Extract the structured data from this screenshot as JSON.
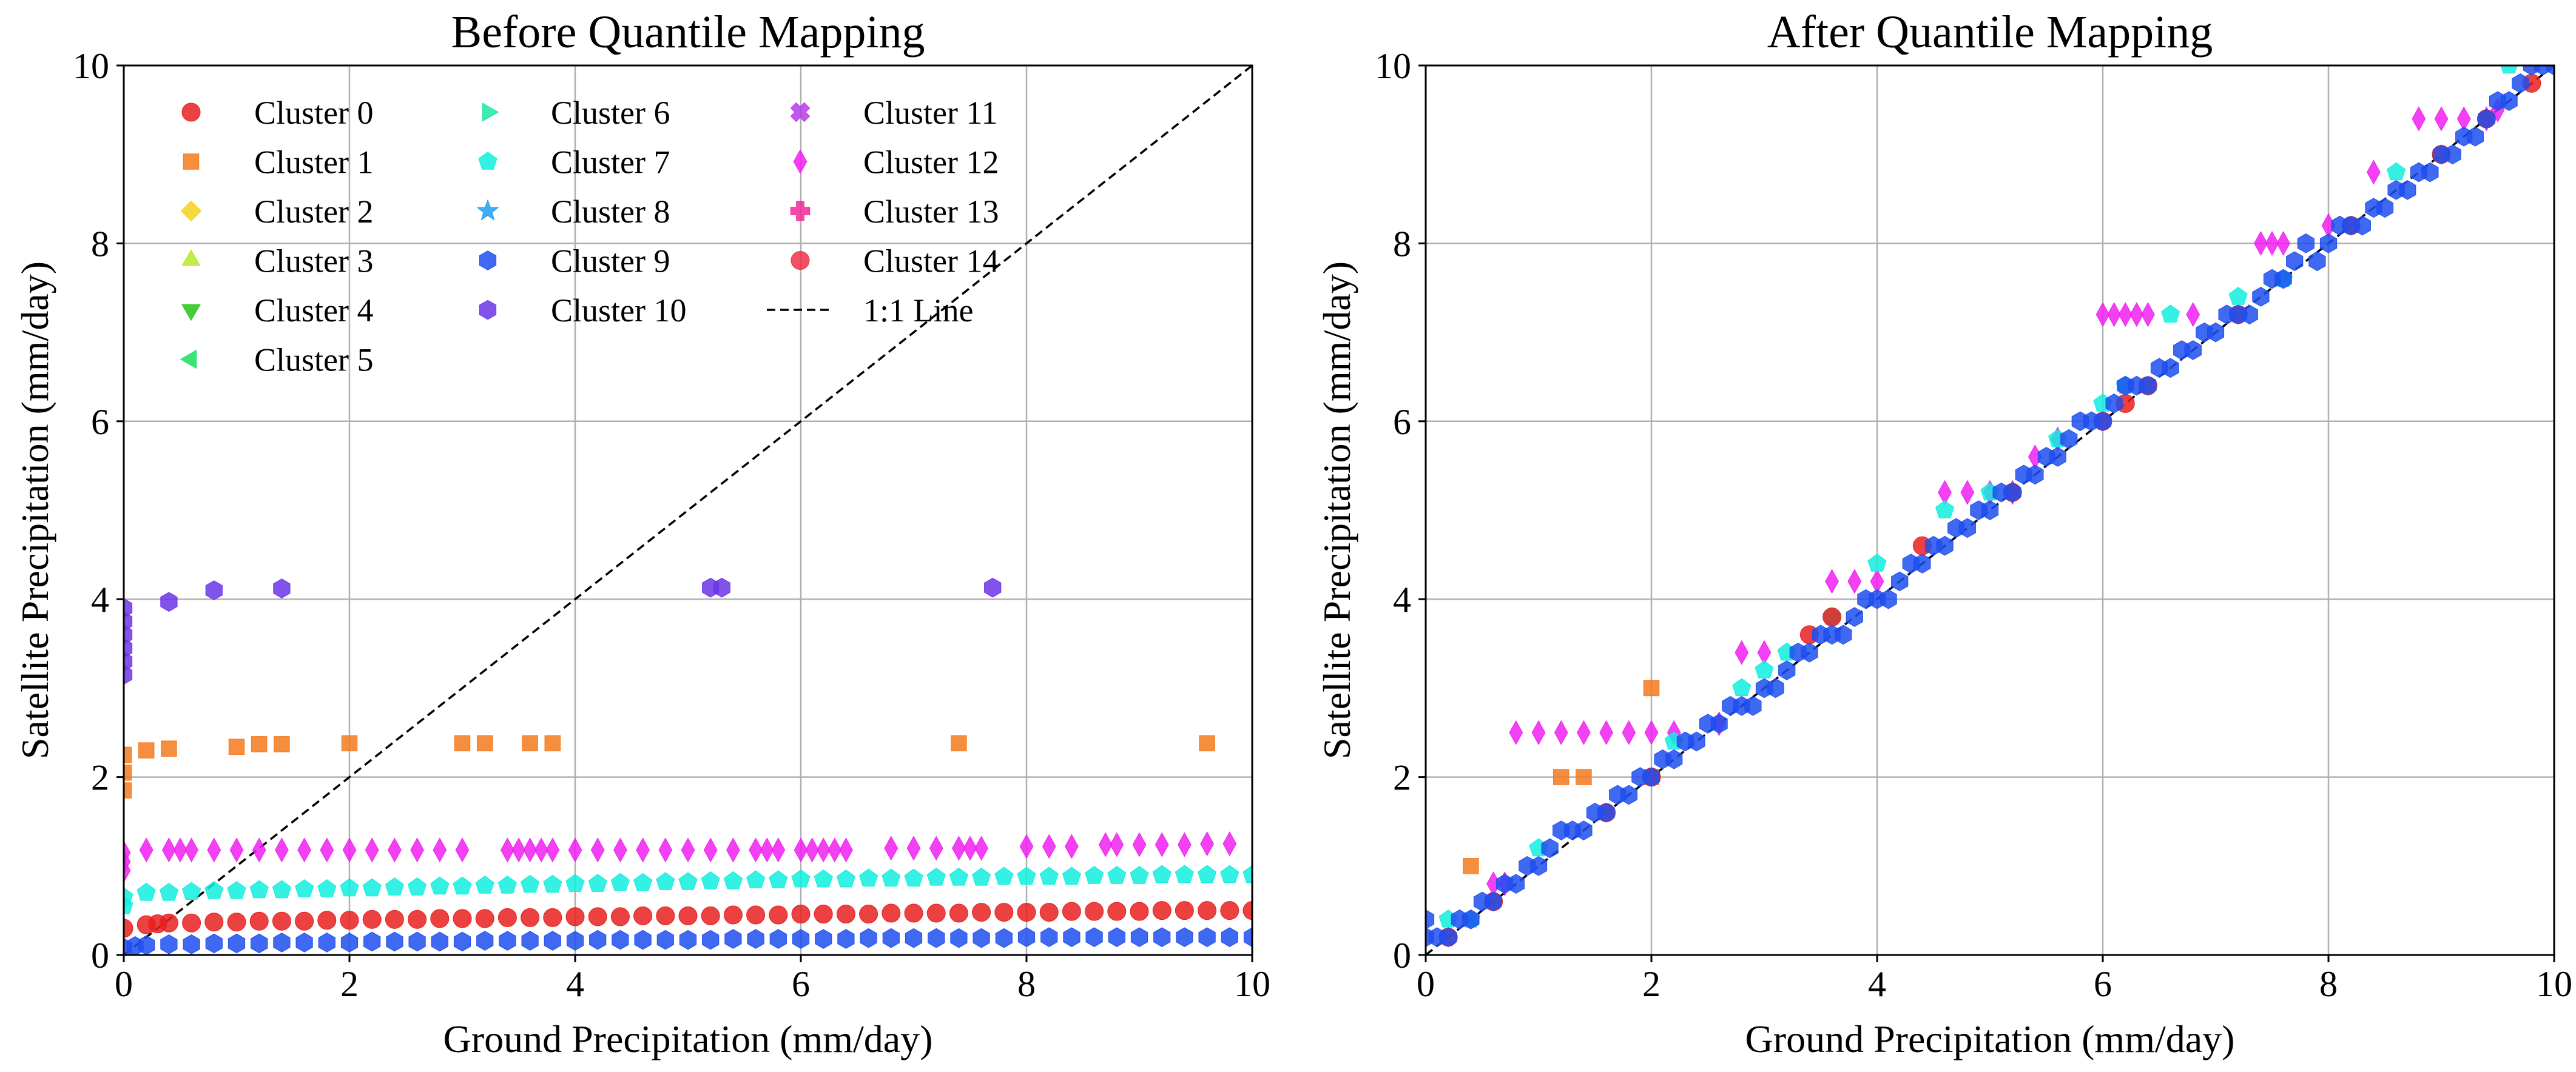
{
  "chart_data": [
    {
      "type": "scatter",
      "title": "Before Quantile Mapping",
      "xlabel": "Ground Precipitation (mm/day)",
      "ylabel": "Satellite Precipitation (mm/day)",
      "xlim": [
        0,
        10
      ],
      "ylim": [
        0,
        10
      ],
      "xticks": [
        0,
        2,
        4,
        6,
        8,
        10
      ],
      "yticks": [
        0,
        2,
        4,
        6,
        8,
        10
      ],
      "grid": true,
      "legend_position": "top-left, three columns",
      "reference_line": {
        "name": "1:1 Line",
        "x": [
          0,
          10
        ],
        "y": [
          0,
          10
        ],
        "style": "dashed",
        "color": "#000000"
      },
      "legend": [
        {
          "name": "Cluster 0",
          "marker": "circle",
          "color": "#e8201e"
        },
        {
          "name": "Cluster 1",
          "marker": "square",
          "color": "#f57a1f"
        },
        {
          "name": "Cluster 2",
          "marker": "diamond",
          "color": "#f5d21c"
        },
        {
          "name": "Cluster 3",
          "marker": "triangle-up",
          "color": "#b5ea2a"
        },
        {
          "name": "Cluster 4",
          "marker": "triangle-down",
          "color": "#27c418"
        },
        {
          "name": "Cluster 5",
          "marker": "triangle-left",
          "color": "#19e05a"
        },
        {
          "name": "Cluster 6",
          "marker": "triangle-right",
          "color": "#1be8a2"
        },
        {
          "name": "Cluster 7",
          "marker": "pentagon",
          "color": "#10eedf"
        },
        {
          "name": "Cluster 8",
          "marker": "star",
          "color": "#1e9ff0"
        },
        {
          "name": "Cluster 9",
          "marker": "hexagon",
          "color": "#1e4ff0"
        },
        {
          "name": "Cluster 10",
          "marker": "hexagon",
          "color": "#6b35e8"
        },
        {
          "name": "Cluster 11",
          "marker": "x",
          "color": "#b63ae8"
        },
        {
          "name": "Cluster 12",
          "marker": "thin-diamond",
          "color": "#f020f0"
        },
        {
          "name": "Cluster 13",
          "marker": "plus",
          "color": "#f02a9a"
        },
        {
          "name": "Cluster 14",
          "marker": "circle",
          "color": "#f0324a"
        },
        {
          "name": "1:1 Line",
          "marker": "dashed-line",
          "color": "#000000"
        }
      ],
      "series": [
        {
          "name": "Cluster 1",
          "marker": "square",
          "color": "#f57a1f",
          "x": [
            0,
            0,
            0,
            0.2,
            0.4,
            1.0,
            1.2,
            1.4,
            2.0,
            3.0,
            3.2,
            3.6,
            3.8,
            7.4,
            9.6
          ],
          "y": [
            1.85,
            2.05,
            2.25,
            2.3,
            2.32,
            2.34,
            2.37,
            2.37,
            2.38,
            2.38,
            2.38,
            2.38,
            2.38,
            2.38,
            2.38
          ]
        },
        {
          "name": "Cluster 10",
          "marker": "hexagon",
          "color": "#6b35e8",
          "x": [
            0,
            0,
            0,
            0,
            0,
            0,
            0.4,
            0.8,
            1.4,
            5.2,
            5.3,
            7.7
          ],
          "y": [
            3.15,
            3.3,
            3.45,
            3.6,
            3.75,
            3.9,
            3.97,
            4.1,
            4.12,
            4.13,
            4.13,
            4.13
          ]
        },
        {
          "name": "Cluster 12",
          "marker": "thin-diamond",
          "color": "#f020f0",
          "x": [
            0,
            0,
            0,
            0.2,
            0.4,
            0.5,
            0.6,
            0.8,
            1.0,
            1.2,
            1.4,
            1.6,
            1.8,
            2.0,
            2.2,
            2.4,
            2.6,
            2.8,
            3.0,
            3.4,
            3.5,
            3.6,
            3.7,
            3.8,
            4.0,
            4.2,
            4.4,
            4.6,
            4.8,
            5.0,
            5.2,
            5.4,
            5.6,
            5.7,
            5.8,
            6.0,
            6.1,
            6.2,
            6.3,
            6.4,
            6.8,
            7.0,
            7.2,
            7.4,
            7.5,
            7.6,
            8.0,
            8.2,
            8.4,
            8.7,
            8.8,
            9.0,
            9.2,
            9.4,
            9.6,
            9.8
          ],
          "y": [
            0.95,
            1.05,
            1.15,
            1.18,
            1.18,
            1.18,
            1.18,
            1.18,
            1.18,
            1.18,
            1.18,
            1.18,
            1.18,
            1.18,
            1.18,
            1.18,
            1.18,
            1.18,
            1.18,
            1.18,
            1.18,
            1.18,
            1.18,
            1.18,
            1.18,
            1.18,
            1.18,
            1.18,
            1.18,
            1.18,
            1.18,
            1.18,
            1.18,
            1.18,
            1.18,
            1.18,
            1.18,
            1.18,
            1.18,
            1.18,
            1.2,
            1.2,
            1.2,
            1.2,
            1.2,
            1.2,
            1.22,
            1.22,
            1.22,
            1.24,
            1.24,
            1.24,
            1.24,
            1.24,
            1.25,
            1.25
          ]
        },
        {
          "name": "Cluster 7",
          "marker": "pentagon",
          "color": "#10eedf",
          "x": [
            0,
            0,
            0.2,
            0.4,
            0.6,
            0.8,
            1.0,
            1.2,
            1.4,
            1.6,
            1.8,
            2.0,
            2.2,
            2.4,
            2.6,
            2.8,
            3.0,
            3.2,
            3.4,
            3.6,
            3.8,
            4.0,
            4.2,
            4.4,
            4.6,
            4.8,
            5.0,
            5.2,
            5.4,
            5.6,
            5.8,
            6.0,
            6.2,
            6.4,
            6.6,
            6.8,
            7.0,
            7.2,
            7.4,
            7.6,
            7.8,
            8.0,
            8.2,
            8.4,
            8.6,
            8.8,
            9.0,
            9.2,
            9.4,
            9.6,
            9.8,
            10.0
          ],
          "y": [
            0.55,
            0.65,
            0.7,
            0.7,
            0.71,
            0.72,
            0.72,
            0.73,
            0.73,
            0.74,
            0.74,
            0.75,
            0.75,
            0.76,
            0.76,
            0.77,
            0.77,
            0.78,
            0.78,
            0.79,
            0.79,
            0.8,
            0.8,
            0.81,
            0.81,
            0.82,
            0.82,
            0.83,
            0.83,
            0.84,
            0.84,
            0.85,
            0.85,
            0.85,
            0.86,
            0.86,
            0.86,
            0.87,
            0.87,
            0.87,
            0.88,
            0.88,
            0.88,
            0.88,
            0.89,
            0.89,
            0.89,
            0.9,
            0.9,
            0.9,
            0.9,
            0.9
          ]
        },
        {
          "name": "Cluster 0",
          "marker": "circle",
          "color": "#e8201e",
          "x": [
            0,
            0.2,
            0.3,
            0.4,
            0.6,
            0.8,
            1.0,
            1.2,
            1.4,
            1.6,
            1.8,
            2.0,
            2.2,
            2.4,
            2.6,
            2.8,
            3.0,
            3.2,
            3.4,
            3.6,
            3.8,
            4.0,
            4.2,
            4.4,
            4.6,
            4.8,
            5.0,
            5.2,
            5.4,
            5.6,
            5.8,
            6.0,
            6.2,
            6.4,
            6.6,
            6.8,
            7.0,
            7.2,
            7.4,
            7.6,
            7.8,
            8.0,
            8.2,
            8.4,
            8.6,
            8.8,
            9.0,
            9.2,
            9.4,
            9.6,
            9.8,
            10.0
          ],
          "y": [
            0.3,
            0.34,
            0.35,
            0.36,
            0.36,
            0.37,
            0.37,
            0.38,
            0.38,
            0.38,
            0.39,
            0.39,
            0.4,
            0.4,
            0.4,
            0.41,
            0.41,
            0.41,
            0.42,
            0.42,
            0.42,
            0.43,
            0.43,
            0.43,
            0.44,
            0.44,
            0.44,
            0.44,
            0.45,
            0.45,
            0.45,
            0.46,
            0.46,
            0.46,
            0.46,
            0.47,
            0.47,
            0.47,
            0.47,
            0.48,
            0.48,
            0.48,
            0.48,
            0.49,
            0.49,
            0.49,
            0.49,
            0.5,
            0.5,
            0.5,
            0.5,
            0.5
          ]
        },
        {
          "name": "Cluster 9",
          "marker": "hexagon",
          "color": "#1e4ff0",
          "x": [
            0,
            0.1,
            0.2,
            0.4,
            0.6,
            0.8,
            1.0,
            1.2,
            1.4,
            1.6,
            1.8,
            2.0,
            2.2,
            2.4,
            2.6,
            2.8,
            3.0,
            3.2,
            3.4,
            3.6,
            3.8,
            4.0,
            4.2,
            4.4,
            4.6,
            4.8,
            5.0,
            5.2,
            5.4,
            5.6,
            5.8,
            6.0,
            6.2,
            6.4,
            6.6,
            6.8,
            7.0,
            7.2,
            7.4,
            7.6,
            7.8,
            8.0,
            8.2,
            8.4,
            8.6,
            8.8,
            9.0,
            9.2,
            9.4,
            9.6,
            9.8,
            10.0
          ],
          "y": [
            0.08,
            0.1,
            0.11,
            0.12,
            0.12,
            0.13,
            0.13,
            0.13,
            0.14,
            0.14,
            0.14,
            0.14,
            0.15,
            0.15,
            0.15,
            0.15,
            0.15,
            0.16,
            0.16,
            0.16,
            0.16,
            0.16,
            0.17,
            0.17,
            0.17,
            0.17,
            0.17,
            0.17,
            0.18,
            0.18,
            0.18,
            0.18,
            0.18,
            0.18,
            0.19,
            0.19,
            0.19,
            0.19,
            0.19,
            0.19,
            0.19,
            0.2,
            0.2,
            0.2,
            0.2,
            0.2,
            0.2,
            0.2,
            0.2,
            0.2,
            0.2,
            0.2
          ]
        }
      ]
    },
    {
      "type": "scatter",
      "title": "After Quantile Mapping",
      "xlabel": "Ground Precipitation (mm/day)",
      "ylabel": "Satellite Precipitation (mm/day)",
      "xlim": [
        0,
        10
      ],
      "ylim": [
        0,
        10
      ],
      "xticks": [
        0,
        2,
        4,
        6,
        8,
        10
      ],
      "yticks": [
        0,
        2,
        4,
        6,
        8,
        10
      ],
      "grid": true,
      "reference_line": {
        "name": "1:1 Line",
        "x": [
          0,
          10
        ],
        "y": [
          0,
          10
        ],
        "style": "dashed",
        "color": "#000000"
      },
      "series": [
        {
          "name": "Cluster 1",
          "marker": "square",
          "color": "#f57a1f",
          "x": [
            0.4,
            1.2,
            1.4,
            2.0,
            2.0
          ],
          "y": [
            1.0,
            2.0,
            2.0,
            3.0,
            2.0
          ]
        },
        {
          "name": "Cluster 12",
          "marker": "thin-diamond",
          "color": "#f020f0",
          "x": [
            0.6,
            0.7,
            0.8,
            1.0,
            1.2,
            1.4,
            1.6,
            1.8,
            2.0,
            2.2,
            2.6,
            2.8,
            3.0,
            3.6,
            3.8,
            4.0,
            4.6,
            4.8,
            5.0,
            5.2,
            5.4,
            5.6,
            6.0,
            6.1,
            6.2,
            6.3,
            6.4,
            6.8,
            7.4,
            7.5,
            7.6,
            8.0,
            8.4,
            8.8,
            9.0,
            9.2,
            9.4,
            9.5
          ],
          "y": [
            0.8,
            0.8,
            2.5,
            2.5,
            2.5,
            2.5,
            2.5,
            2.5,
            2.5,
            2.5,
            2.6,
            3.4,
            3.4,
            4.2,
            4.2,
            4.2,
            5.2,
            5.2,
            5.2,
            5.2,
            5.6,
            5.8,
            7.2,
            7.2,
            7.2,
            7.2,
            7.2,
            7.2,
            8.0,
            8.0,
            8.0,
            8.2,
            8.8,
            9.4,
            9.4,
            9.4,
            9.4,
            9.5
          ]
        },
        {
          "name": "Cluster 7",
          "marker": "pentagon",
          "color": "#10eedf",
          "x": [
            0.2,
            0.4,
            1.0,
            2.2,
            2.8,
            3.0,
            3.2,
            3.6,
            4.0,
            4.6,
            5.0,
            5.6,
            6.0,
            6.2,
            6.6,
            7.2,
            7.6,
            8.6,
            9.6
          ],
          "y": [
            0.4,
            0.4,
            1.2,
            2.4,
            3.0,
            3.2,
            3.4,
            3.8,
            4.4,
            5.0,
            5.2,
            5.8,
            6.2,
            6.4,
            7.2,
            7.4,
            7.6,
            8.8,
            10.0
          ]
        },
        {
          "name": "Cluster 0",
          "marker": "circle",
          "color": "#e8201e",
          "x": [
            0.2,
            0.6,
            1.6,
            2.0,
            3.4,
            3.6,
            4.4,
            5.2,
            6.0,
            6.2,
            6.4,
            7.2,
            8.2,
            9.0,
            9.4,
            9.8
          ],
          "y": [
            0.2,
            0.6,
            1.6,
            2.0,
            3.6,
            3.8,
            4.6,
            5.2,
            6.0,
            6.2,
            6.4,
            7.2,
            8.2,
            9.0,
            9.4,
            9.8
          ]
        },
        {
          "name": "Cluster 9",
          "marker": "hexagon",
          "color": "#1e4ff0",
          "x": [
            0,
            0,
            0.1,
            0.2,
            0.3,
            0.4,
            0.5,
            0.6,
            0.7,
            0.8,
            0.9,
            1.0,
            1.1,
            1.2,
            1.3,
            1.4,
            1.5,
            1.6,
            1.7,
            1.8,
            1.9,
            2.0,
            2.1,
            2.2,
            2.3,
            2.4,
            2.5,
            2.6,
            2.7,
            2.8,
            2.9,
            3.0,
            3.1,
            3.2,
            3.3,
            3.4,
            3.5,
            3.6,
            3.7,
            3.8,
            3.9,
            4.0,
            4.1,
            4.2,
            4.3,
            4.4,
            4.5,
            4.6,
            4.7,
            4.8,
            4.9,
            5.0,
            5.1,
            5.2,
            5.3,
            5.4,
            5.5,
            5.6,
            5.7,
            5.8,
            5.9,
            6.0,
            6.1,
            6.2,
            6.3,
            6.4,
            6.5,
            6.6,
            6.7,
            6.8,
            6.9,
            7.0,
            7.1,
            7.2,
            7.3,
            7.4,
            7.5,
            7.6,
            7.7,
            7.8,
            7.9,
            8.0,
            8.1,
            8.2,
            8.3,
            8.4,
            8.5,
            8.6,
            8.7,
            8.8,
            8.9,
            9.0,
            9.1,
            9.2,
            9.3,
            9.4,
            9.5,
            9.6,
            9.7,
            9.8,
            9.9,
            10.0
          ],
          "y": [
            0.2,
            0.4,
            0.2,
            0.2,
            0.4,
            0.4,
            0.6,
            0.6,
            0.8,
            0.8,
            1.0,
            1.0,
            1.2,
            1.4,
            1.4,
            1.4,
            1.6,
            1.6,
            1.8,
            1.8,
            2.0,
            2.0,
            2.2,
            2.2,
            2.4,
            2.4,
            2.6,
            2.6,
            2.8,
            2.8,
            2.8,
            3.0,
            3.0,
            3.2,
            3.4,
            3.4,
            3.6,
            3.6,
            3.6,
            3.8,
            4.0,
            4.0,
            4.0,
            4.2,
            4.4,
            4.4,
            4.6,
            4.6,
            4.8,
            4.8,
            5.0,
            5.0,
            5.2,
            5.2,
            5.4,
            5.4,
            5.6,
            5.6,
            5.8,
            6.0,
            6.0,
            6.0,
            6.2,
            6.4,
            6.4,
            6.4,
            6.6,
            6.6,
            6.8,
            6.8,
            7.0,
            7.0,
            7.2,
            7.2,
            7.2,
            7.4,
            7.6,
            7.6,
            7.8,
            8.0,
            7.8,
            8.0,
            8.2,
            8.2,
            8.2,
            8.4,
            8.4,
            8.6,
            8.6,
            8.8,
            8.8,
            9.0,
            9.0,
            9.2,
            9.2,
            9.4,
            9.6,
            9.6,
            9.8,
            10.0,
            10.0,
            10.0
          ]
        }
      ]
    }
  ]
}
